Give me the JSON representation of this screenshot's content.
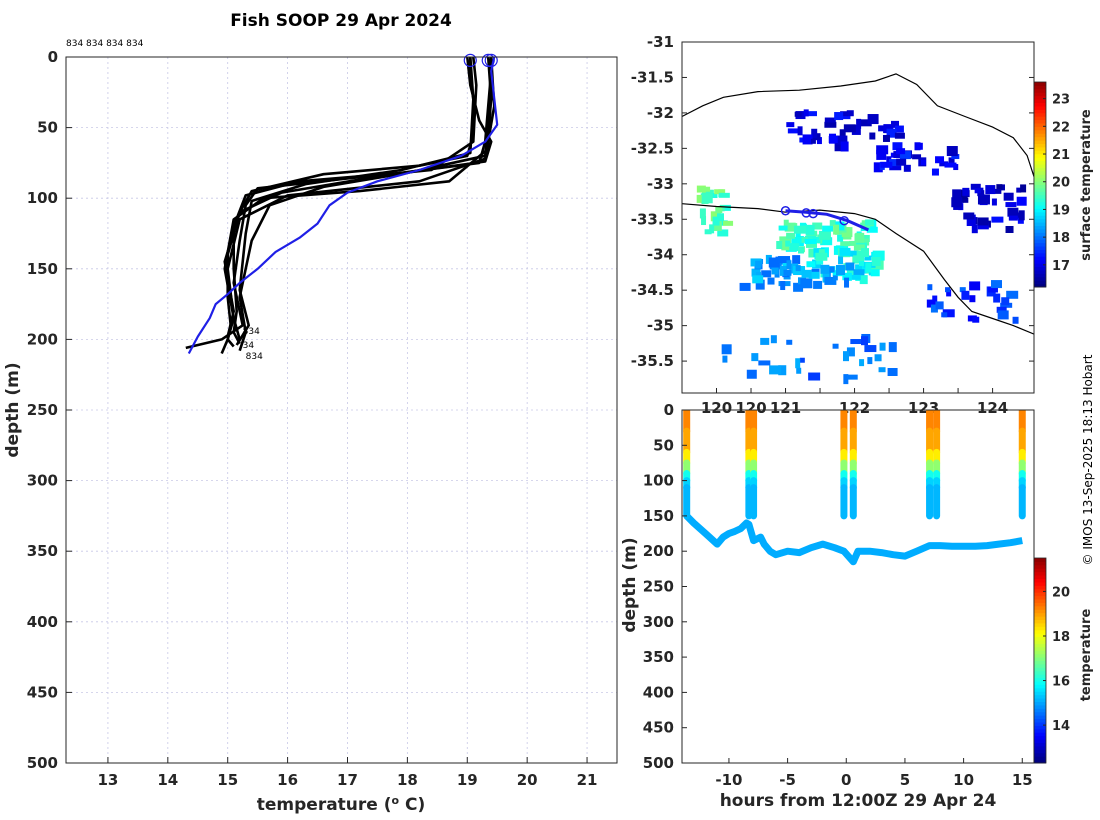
{
  "figure": {
    "credit": "© IMOS 13-Sep-2025 18:13 Hobart"
  },
  "chart_data": [
    {
      "type": "line",
      "name": "profile",
      "title": "Fish SOOP 29 Apr 2024",
      "xlabel": "temperature (",
      "xlabel_unit": "o",
      "xlabel_end": " C)",
      "ylabel": "depth (m)",
      "xlim": [
        12.3,
        21.5
      ],
      "ylim": [
        0,
        500
      ],
      "y_reversed": true,
      "xticks": [
        13,
        14,
        15,
        16,
        17,
        18,
        19,
        20,
        21
      ],
      "yticks": [
        0,
        50,
        100,
        150,
        200,
        250,
        300,
        350,
        400,
        450,
        500
      ],
      "grid": true,
      "top_labels": "834 834 834 834",
      "annotations": [
        {
          "text": "834",
          "t": 15.25,
          "d": 196
        },
        {
          "text": "34",
          "t": 15.25,
          "d": 206
        },
        {
          "text": "834",
          "t": 15.3,
          "d": 214
        }
      ],
      "series": [
        {
          "name": "profile-1",
          "color": "#000000",
          "t": [
            19.05,
            19.05,
            19.1,
            19.1,
            19.0,
            18.2,
            16.6,
            15.4,
            15.2,
            15.0,
            15.0,
            15.05,
            15.0,
            15.1
          ],
          "d": [
            0,
            10,
            30,
            55,
            70,
            77,
            83,
            95,
            110,
            140,
            170,
            190,
            200,
            205
          ]
        },
        {
          "name": "profile-2",
          "color": "#000000",
          "t": [
            19.35,
            19.4,
            19.35,
            19.3,
            19.2,
            17.9,
            16.2,
            15.3,
            15.1,
            15.1,
            15.15,
            15.1,
            15.2
          ],
          "d": [
            0,
            10,
            35,
            60,
            75,
            82,
            88,
            98,
            120,
            150,
            180,
            195,
            203
          ]
        },
        {
          "name": "profile-3",
          "color": "#000000",
          "t": [
            19.1,
            19.15,
            19.1,
            18.4,
            17.0,
            15.5,
            15.3,
            15.2,
            15.1,
            15.25,
            14.9,
            14.3
          ],
          "d": [
            0,
            20,
            60,
            80,
            86,
            93,
            105,
            130,
            160,
            190,
            200,
            206
          ]
        },
        {
          "name": "profile-4",
          "color": "#000000",
          "t": [
            19.4,
            19.4,
            19.35,
            18.7,
            17.2,
            15.6,
            15.1,
            14.95,
            15.1,
            15.0,
            14.9
          ],
          "d": [
            0,
            25,
            65,
            88,
            95,
            100,
            115,
            150,
            185,
            200,
            210
          ]
        },
        {
          "name": "profile-5",
          "color": "#000000",
          "t": [
            19.05,
            19.1,
            19.05,
            17.9,
            16.3,
            15.4,
            15.3,
            15.2,
            15.35,
            15.15
          ],
          "d": [
            0,
            30,
            68,
            80,
            90,
            102,
            125,
            165,
            190,
            204
          ]
        },
        {
          "name": "profile-6",
          "color": "#000000",
          "t": [
            19.35,
            19.4,
            19.3,
            18.0,
            16.6,
            15.7,
            15.4,
            15.2,
            15.3,
            15.2
          ],
          "d": [
            0,
            30,
            70,
            82,
            92,
            105,
            130,
            170,
            195,
            208
          ]
        },
        {
          "name": "profile-7",
          "color": "#000000",
          "t": [
            19.0,
            19.05,
            19.2,
            19.4,
            19.3,
            17.6,
            15.9,
            15.2,
            14.95,
            15.1,
            15.0
          ],
          "d": [
            0,
            20,
            45,
            60,
            74,
            84,
            96,
            110,
            145,
            180,
            198
          ]
        },
        {
          "name": "profile-8",
          "color": "#000000",
          "t": [
            19.4,
            19.45,
            19.3,
            18.2,
            16.0,
            15.2,
            15.0,
            15.1,
            15.2
          ],
          "d": [
            0,
            35,
            72,
            88,
            98,
            115,
            150,
            185,
            200
          ]
        },
        {
          "name": "climatology",
          "color": "#1f1fe6",
          "t": [
            19.45,
            19.4,
            19.5,
            19.3,
            18.9,
            18.2,
            17.5,
            17.0,
            16.7,
            16.5,
            16.2,
            15.8,
            15.5,
            15.2,
            15.0,
            14.8,
            14.7,
            14.5,
            14.35
          ],
          "d": [
            0,
            10,
            48,
            60,
            70,
            80,
            88,
            96,
            105,
            118,
            128,
            138,
            150,
            160,
            168,
            175,
            185,
            198,
            210
          ]
        }
      ],
      "markers": [
        {
          "t": 19.05,
          "d": 1
        },
        {
          "t": 19.35,
          "d": 1
        },
        {
          "t": 19.4,
          "d": 1
        }
      ]
    },
    {
      "type": "heatmap",
      "name": "map",
      "xlim": [
        119.5,
        124.6
      ],
      "ylim": [
        -35.95,
        -31.0
      ],
      "yticks": [
        -31,
        -31.5,
        -32,
        -32.5,
        -33,
        -33.5,
        -34,
        -34.5,
        -35,
        -35.5
      ],
      "xticks": [
        120,
        120.5,
        121,
        121.5,
        122,
        122.5,
        123,
        123.5,
        124
      ],
      "xtick_labels_partial": [
        "120",
        "120",
        "121",
        "122",
        "123",
        "124"
      ],
      "colorbar": {
        "label": "surface temperature",
        "min": 16.2,
        "max": 23.6,
        "ticks": [
          17,
          18,
          19,
          20,
          21,
          22,
          23
        ]
      },
      "coastline": [
        [
          119.5,
          -32.05
        ],
        [
          119.8,
          -31.9
        ],
        [
          120.1,
          -31.78
        ],
        [
          120.6,
          -31.7
        ],
        [
          121.2,
          -31.68
        ],
        [
          121.8,
          -31.62
        ],
        [
          122.3,
          -31.55
        ],
        [
          122.6,
          -31.45
        ],
        [
          122.9,
          -31.6
        ],
        [
          123.2,
          -31.9
        ],
        [
          123.6,
          -32.05
        ],
        [
          124.0,
          -32.2
        ],
        [
          124.3,
          -32.35
        ],
        [
          124.5,
          -32.6
        ],
        [
          124.6,
          -32.9
        ]
      ],
      "section_line": [
        [
          119.5,
          -33.28
        ],
        [
          120.0,
          -33.32
        ],
        [
          120.6,
          -33.35
        ],
        [
          121.0,
          -33.4
        ],
        [
          121.5,
          -33.37
        ],
        [
          122.0,
          -33.42
        ],
        [
          122.3,
          -33.5
        ],
        [
          122.6,
          -33.7
        ],
        [
          123.0,
          -33.95
        ],
        [
          123.3,
          -34.35
        ],
        [
          123.5,
          -34.6
        ],
        [
          123.7,
          -34.8
        ],
        [
          124.0,
          -34.9
        ],
        [
          124.3,
          -35.0
        ],
        [
          124.6,
          -35.12
        ]
      ],
      "ship_track": [
        [
          121.0,
          -33.38
        ],
        [
          121.3,
          -33.4
        ],
        [
          121.6,
          -33.43
        ],
        [
          121.9,
          -33.52
        ],
        [
          122.2,
          -33.65
        ]
      ],
      "track_markers": [
        [
          121.0,
          -33.38
        ],
        [
          121.3,
          -33.41
        ],
        [
          121.4,
          -33.42
        ],
        [
          121.85,
          -33.52
        ]
      ],
      "sst_patches": [
        {
          "lon": 121.0,
          "lat": -31.95,
          "w": 1.6,
          "h": 0.5,
          "temp": 16.9,
          "n": 40
        },
        {
          "lon": 122.2,
          "lat": -32.4,
          "w": 1.3,
          "h": 0.4,
          "temp": 17.1,
          "n": 30
        },
        {
          "lon": 123.4,
          "lat": -33.0,
          "w": 1.0,
          "h": 0.6,
          "temp": 16.8,
          "n": 40
        },
        {
          "lon": 120.8,
          "lat": -33.5,
          "w": 1.4,
          "h": 0.4,
          "temp": 19.4,
          "n": 60
        },
        {
          "lon": 121.3,
          "lat": -33.9,
          "w": 1.0,
          "h": 0.4,
          "temp": 19.1,
          "n": 40
        },
        {
          "lon": 119.7,
          "lat": -33.0,
          "w": 0.4,
          "h": 0.7,
          "temp": 19.6,
          "n": 25
        },
        {
          "lon": 120.3,
          "lat": -34.0,
          "w": 1.8,
          "h": 0.4,
          "temp": 18.3,
          "n": 50
        },
        {
          "lon": 120.0,
          "lat": -35.1,
          "w": 2.5,
          "h": 0.6,
          "temp": 18.0,
          "n": 30
        },
        {
          "lon": 123.0,
          "lat": -34.3,
          "w": 1.4,
          "h": 0.6,
          "temp": 17.5,
          "n": 25
        }
      ]
    },
    {
      "type": "scatter",
      "name": "section",
      "xlabel": "hours from 12:00Z 29 Apr 24",
      "ylabel": "depth (m)",
      "xlim": [
        -14,
        16
      ],
      "ylim": [
        0,
        500
      ],
      "y_reversed": true,
      "xticks": [
        -10,
        -5,
        0,
        5,
        10,
        15
      ],
      "yticks": [
        0,
        50,
        100,
        150,
        200,
        250,
        300,
        350,
        400,
        450,
        500
      ],
      "colorbar": {
        "label": "temperature",
        "min": 12.3,
        "max": 21.5,
        "ticks": [
          14,
          16,
          18,
          20
        ]
      },
      "casts": [
        -13.6,
        -8.3,
        -7.9,
        -0.2,
        0.6,
        7.1,
        7.7,
        15.0
      ],
      "bottom_track": {
        "h": [
          -13.6,
          -13.0,
          -12.0,
          -11.0,
          -10.5,
          -10.0,
          -9.5,
          -9.0,
          -8.5,
          -8.3,
          -7.9,
          -7.3,
          -7.0,
          -6.5,
          -6.0,
          -5.0,
          -4.0,
          -3.0,
          -2.0,
          -1.0,
          -0.2,
          0.6,
          1.0,
          2.0,
          3.0,
          4.0,
          5.0,
          6.0,
          7.1,
          7.7,
          8.0,
          9.0,
          10.0,
          11.0,
          12.0,
          13.0,
          14.0,
          15.0
        ],
        "d": [
          150,
          160,
          175,
          190,
          180,
          175,
          172,
          168,
          160,
          162,
          185,
          180,
          190,
          200,
          205,
          200,
          202,
          195,
          190,
          195,
          200,
          215,
          200,
          200,
          202,
          205,
          207,
          200,
          192,
          192,
          192,
          193,
          193,
          193,
          192,
          190,
          188,
          185
        ]
      },
      "cast_profile": {
        "d": [
          0,
          30,
          60,
          75,
          90,
          100,
          110,
          150
        ],
        "temp": [
          19.2,
          19.1,
          18.6,
          17.8,
          16.3,
          15.5,
          15.2,
          15.0
        ]
      }
    }
  ]
}
